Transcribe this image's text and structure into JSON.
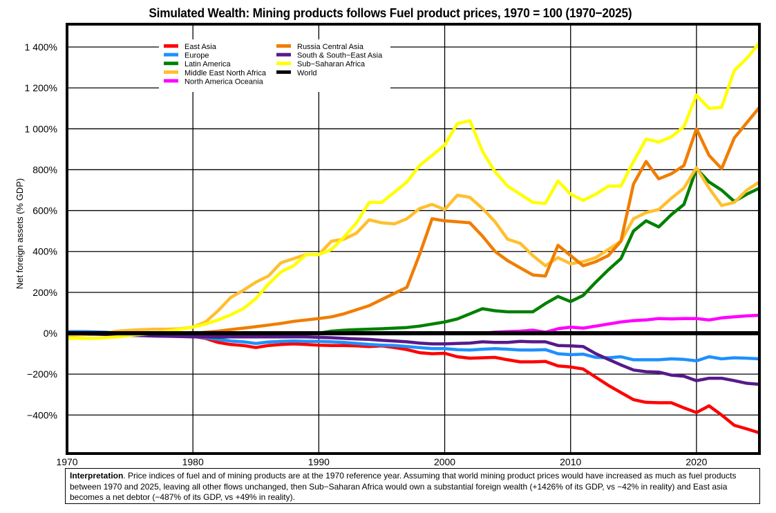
{
  "chart_data": {
    "type": "line",
    "title": "Simulated Wealth: Mining products follows Fuel product prices, 1970 = 100 (1970−2025)",
    "xlabel": "",
    "ylabel": "Net foreign assets (% GDP)",
    "xlim": [
      1970,
      2025
    ],
    "ylim": [
      -580,
      1480
    ],
    "grid": true,
    "legend_position": "top-left",
    "x_ticks": [
      1970,
      1980,
      1990,
      2000,
      2010,
      2020
    ],
    "x_tick_labels": [
      "1970",
      "1980",
      "1990",
      "2000",
      "2010",
      "2020"
    ],
    "y_ticks": [
      -400,
      -200,
      0,
      200,
      400,
      600,
      800,
      1000,
      1200,
      1400
    ],
    "y_tick_labels": [
      "−400%",
      "−200%",
      "0%",
      "200%",
      "400%",
      "600%",
      "800%",
      "1 000%",
      "1 200%",
      "1 400%"
    ],
    "x": [
      1970,
      1971,
      1972,
      1973,
      1974,
      1975,
      1976,
      1977,
      1978,
      1979,
      1980,
      1981,
      1982,
      1983,
      1984,
      1985,
      1986,
      1987,
      1988,
      1989,
      1990,
      1991,
      1992,
      1993,
      1994,
      1995,
      1996,
      1997,
      1998,
      1999,
      2000,
      2001,
      2002,
      2003,
      2004,
      2005,
      2006,
      2007,
      2008,
      2009,
      2010,
      2011,
      2012,
      2013,
      2014,
      2015,
      2016,
      2017,
      2018,
      2019,
      2020,
      2021,
      2022,
      2023,
      2024,
      2025
    ],
    "series": [
      {
        "name": "East Asia",
        "color": "#ff0000",
        "values": [
          5,
          5,
          3,
          2,
          0,
          -2,
          -5,
          -8,
          -10,
          -12,
          -15,
          -25,
          -45,
          -55,
          -60,
          -70,
          -60,
          -55,
          -52,
          -55,
          -58,
          -60,
          -60,
          -62,
          -65,
          -62,
          -70,
          -80,
          -95,
          -100,
          -98,
          -115,
          -122,
          -120,
          -118,
          -130,
          -140,
          -140,
          -138,
          -160,
          -165,
          -175,
          -215,
          -255,
          -290,
          -325,
          -338,
          -340,
          -340,
          -365,
          -388,
          -355,
          -400,
          -450,
          -468,
          -487
        ]
      },
      {
        "name": "Europe",
        "color": "#1e90ff",
        "values": [
          8,
          8,
          7,
          5,
          3,
          0,
          -2,
          -5,
          -8,
          -10,
          -15,
          -22,
          -30,
          -38,
          -42,
          -50,
          -43,
          -40,
          -38,
          -40,
          -40,
          -42,
          -45,
          -50,
          -55,
          -58,
          -60,
          -65,
          -70,
          -75,
          -75,
          -80,
          -82,
          -78,
          -75,
          -78,
          -82,
          -82,
          -80,
          -100,
          -105,
          -102,
          -118,
          -120,
          -115,
          -130,
          -130,
          -130,
          -125,
          -128,
          -135,
          -115,
          -125,
          -120,
          -122,
          -125
        ]
      },
      {
        "name": "Latin America",
        "color": "#008000",
        "values": [
          0,
          -2,
          -3,
          -5,
          -6,
          -8,
          -10,
          -12,
          -14,
          -15,
          -15,
          -18,
          -20,
          -18,
          -10,
          -5,
          -5,
          -3,
          -3,
          0,
          0,
          10,
          15,
          18,
          20,
          22,
          25,
          28,
          35,
          45,
          55,
          70,
          95,
          120,
          110,
          105,
          105,
          105,
          145,
          180,
          155,
          185,
          250,
          310,
          365,
          500,
          550,
          520,
          580,
          630,
          805,
          740,
          700,
          645,
          680,
          710
        ]
      },
      {
        "name": "Middle East North Africa",
        "color": "#ffbf2f",
        "values": [
          -10,
          -8,
          -5,
          0,
          10,
          15,
          18,
          20,
          20,
          22,
          30,
          55,
          110,
          175,
          210,
          250,
          280,
          345,
          365,
          385,
          385,
          450,
          460,
          490,
          555,
          540,
          535,
          560,
          610,
          630,
          605,
          675,
          665,
          610,
          545,
          460,
          440,
          380,
          330,
          370,
          340,
          350,
          370,
          410,
          450,
          560,
          590,
          605,
          660,
          710,
          810,
          710,
          625,
          640,
          700,
          740
        ]
      },
      {
        "name": "North America Oceania",
        "color": "#ff00ff",
        "values": [
          0,
          0,
          0,
          0,
          0,
          0,
          0,
          0,
          0,
          0,
          0,
          0,
          0,
          0,
          0,
          0,
          0,
          0,
          0,
          0,
          0,
          0,
          0,
          0,
          0,
          0,
          0,
          0,
          2,
          3,
          0,
          0,
          0,
          0,
          5,
          8,
          10,
          15,
          5,
          22,
          30,
          25,
          35,
          45,
          55,
          62,
          65,
          72,
          70,
          72,
          72,
          65,
          75,
          80,
          85,
          88
        ]
      },
      {
        "name": "Russia Central Asia",
        "color": "#f07d00",
        "values": [
          0,
          0,
          0,
          0,
          0,
          0,
          0,
          0,
          0,
          0,
          0,
          5,
          10,
          18,
          25,
          32,
          40,
          48,
          58,
          65,
          72,
          80,
          95,
          115,
          135,
          165,
          195,
          225,
          385,
          560,
          550,
          545,
          540,
          475,
          400,
          355,
          320,
          285,
          280,
          430,
          380,
          330,
          350,
          380,
          450,
          730,
          840,
          755,
          780,
          820,
          1000,
          870,
          805,
          955,
          1030,
          1105
        ]
      },
      {
        "name": "South & South−East Asia",
        "color": "#551a8b",
        "values": [
          0,
          -2,
          -4,
          -6,
          -8,
          -10,
          -12,
          -14,
          -15,
          -16,
          -18,
          -18,
          -18,
          -18,
          -18,
          -18,
          -18,
          -18,
          -18,
          -18,
          -20,
          -22,
          -25,
          -28,
          -30,
          -35,
          -38,
          -42,
          -48,
          -52,
          -52,
          -50,
          -48,
          -42,
          -45,
          -45,
          -40,
          -42,
          -42,
          -60,
          -62,
          -65,
          -100,
          -128,
          -155,
          -180,
          -188,
          -190,
          -205,
          -210,
          -232,
          -220,
          -220,
          -232,
          -245,
          -250
        ]
      },
      {
        "name": "Sub−Saharan Africa",
        "color": "#ffff00",
        "values": [
          -25,
          -25,
          -25,
          -22,
          -18,
          -10,
          -5,
          0,
          10,
          20,
          30,
          45,
          65,
          90,
          120,
          170,
          240,
          300,
          330,
          385,
          385,
          410,
          470,
          540,
          640,
          640,
          690,
          740,
          820,
          870,
          920,
          1025,
          1040,
          890,
          790,
          720,
          680,
          640,
          635,
          745,
          680,
          650,
          680,
          720,
          720,
          840,
          950,
          935,
          960,
          1010,
          1165,
          1100,
          1105,
          1285,
          1345,
          1420
        ]
      },
      {
        "name": "World",
        "color": "#000000",
        "values": [
          0,
          0,
          0,
          0,
          0,
          0,
          0,
          0,
          0,
          0,
          0,
          0,
          0,
          0,
          0,
          0,
          0,
          0,
          0,
          0,
          0,
          0,
          0,
          0,
          0,
          0,
          0,
          0,
          0,
          0,
          0,
          0,
          0,
          0,
          0,
          0,
          0,
          0,
          0,
          0,
          0,
          0,
          0,
          0,
          0,
          0,
          0,
          0,
          0,
          0,
          0,
          0,
          0,
          0,
          0,
          0
        ]
      }
    ],
    "legend": {
      "col1": [
        "East Asia",
        "Europe",
        "Latin America",
        "Middle East North Africa",
        "North America Oceania"
      ],
      "col2": [
        "Russia Central Asia",
        "South & South−East Asia",
        "Sub−Saharan Africa",
        "World"
      ]
    }
  },
  "note": {
    "label": "Interpretation",
    "text": ". Price indices of fuel and of mining products are at the 1970 reference year. Assuming that world mining product prices would have increased as much as fuel products between 1970 and 2025, leaving all other flows unchanged, then Sub−Saharan Africa would own a substantial foreign wealth (+1426% of its GDP, vs −42% in reality) and East asia becomes a net debtor (−487% of its GDP, vs +49% in reality)."
  }
}
